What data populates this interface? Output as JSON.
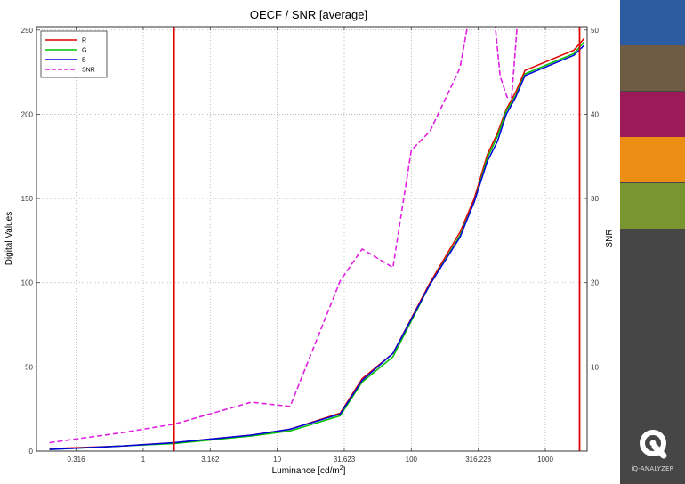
{
  "chart_data": {
    "type": "line",
    "title": "OECF / SNR [average]",
    "xlabel": "Luminance [cd/m",
    "xlabel_sup": "2",
    "xlabel_end": "]",
    "ylabel": "Digital Values",
    "ylabel_right": "SNR",
    "x_scale": "log",
    "xlim": [
      0.16,
      2050
    ],
    "ylim": [
      0,
      252
    ],
    "ylim_right": [
      0,
      50.4
    ],
    "x_ticks": [
      0.316,
      1,
      3.162,
      10,
      31.623,
      100,
      316.228,
      1000
    ],
    "x_tick_labels": [
      "0.316",
      "1",
      "3.162",
      "10",
      "31.623",
      "100",
      "316.228",
      "1000"
    ],
    "y_ticks": [
      0,
      50,
      100,
      150,
      200,
      250
    ],
    "y_tick_labels": [
      "0",
      "50",
      "100",
      "150",
      "200",
      "250"
    ],
    "y_ticks_right": [
      10,
      20,
      30,
      40,
      50
    ],
    "y_tick_labels_right": [
      "10",
      "20",
      "30",
      "40",
      "50"
    ],
    "grid": true,
    "legend_position": "top-left",
    "vertical_markers": [
      1.7,
      1800
    ],
    "marker_color": "#e00000",
    "series": [
      {
        "name": "R",
        "color": "#e00000",
        "axis": "left",
        "dash": false,
        "x": [
          0.2,
          0.7,
          1.7,
          6.4,
          12.5,
          29.5,
          43,
          73,
          138,
          231,
          295,
          369,
          440,
          511,
          600,
          705,
          1630,
          1950
        ],
        "y": [
          1.5,
          3,
          5,
          9.5,
          13,
          22.5,
          43,
          58,
          100,
          130,
          150,
          176,
          189,
          203,
          213,
          226,
          238,
          245
        ]
      },
      {
        "name": "G",
        "color": "#00c000",
        "axis": "left",
        "dash": false,
        "x": [
          0.2,
          0.7,
          1.7,
          6.4,
          12.5,
          29.5,
          43,
          73,
          138,
          231,
          295,
          369,
          440,
          511,
          600,
          705,
          1630,
          1950
        ],
        "y": [
          1,
          3,
          4.5,
          9,
          12,
          21,
          41,
          56,
          99,
          128,
          148,
          174,
          187,
          202,
          211,
          224,
          236,
          243
        ]
      },
      {
        "name": "B",
        "color": "#0000e0",
        "axis": "left",
        "dash": false,
        "x": [
          0.2,
          0.7,
          1.7,
          6.4,
          12.5,
          29.5,
          43,
          73,
          138,
          231,
          295,
          369,
          440,
          511,
          600,
          705,
          1630,
          1950
        ],
        "y": [
          1,
          3,
          5,
          9.5,
          13,
          22,
          42,
          58,
          99,
          127,
          148,
          172,
          184,
          200,
          210,
          223,
          235,
          241
        ]
      },
      {
        "name": "SNR",
        "color": "#e020e0",
        "axis": "right",
        "dash": true,
        "x": [
          0.2,
          0.7,
          1.7,
          6.4,
          12.5,
          29.5,
          43,
          73,
          100,
          138,
          231,
          266,
          420,
          460,
          520,
          560,
          620
        ],
        "y": [
          1,
          2.2,
          3.2,
          5.8,
          5.3,
          20.2,
          24,
          21.8,
          35.7,
          38,
          45.5,
          51,
          51,
          44.5,
          42,
          42,
          51
        ]
      }
    ]
  },
  "sidebar": {
    "swatches": [
      "#2d5ca3",
      "#6e5c45",
      "#9c1a57",
      "#ec8e13",
      "#789530"
    ],
    "brand_text": "iQ-ANALYZER"
  }
}
